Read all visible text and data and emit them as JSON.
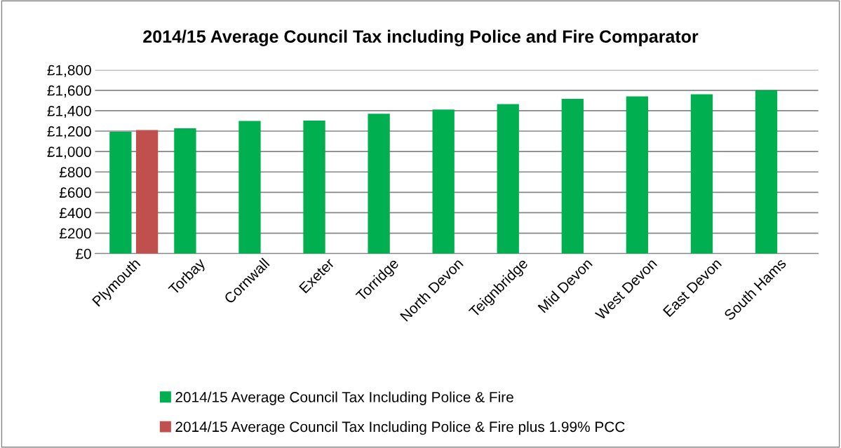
{
  "chart_data": {
    "type": "bar",
    "title": "2014/15 Average Council Tax including Police and Fire Comparator",
    "categories": [
      "Plymouth",
      "Torbay",
      "Cornwall",
      "Exeter",
      "Torridge",
      "North Devon",
      "Teignbridge",
      "Mid Devon",
      "West Devon",
      "East Devon",
      "South Hams"
    ],
    "series": [
      {
        "name": "2014/15 Average Council Tax Including Police & Fire",
        "color": "#00b050",
        "values": [
          1193,
          1227,
          1299,
          1304,
          1370,
          1412,
          1464,
          1516,
          1541,
          1560,
          1600
        ]
      },
      {
        "name": "2014/15 Average Council Tax Including Police & Fire plus 1.99% PCC",
        "color": "#c0504d",
        "values": [
          1210,
          null,
          null,
          null,
          null,
          null,
          null,
          null,
          null,
          null,
          null
        ]
      }
    ],
    "ylim": [
      0,
      1800
    ],
    "yticks": [
      {
        "value": 0,
        "label": "£0"
      },
      {
        "value": 200,
        "label": "£200"
      },
      {
        "value": 400,
        "label": "£400"
      },
      {
        "value": 600,
        "label": "£600"
      },
      {
        "value": 800,
        "label": "£800"
      },
      {
        "value": 1000,
        "label": "£1,000"
      },
      {
        "value": 1200,
        "label": "£1,200"
      },
      {
        "value": 1400,
        "label": "£1,400"
      },
      {
        "value": 1600,
        "label": "£1,600"
      },
      {
        "value": 1800,
        "label": "£1,800"
      }
    ],
    "grid": "y",
    "legend": "bottom"
  }
}
